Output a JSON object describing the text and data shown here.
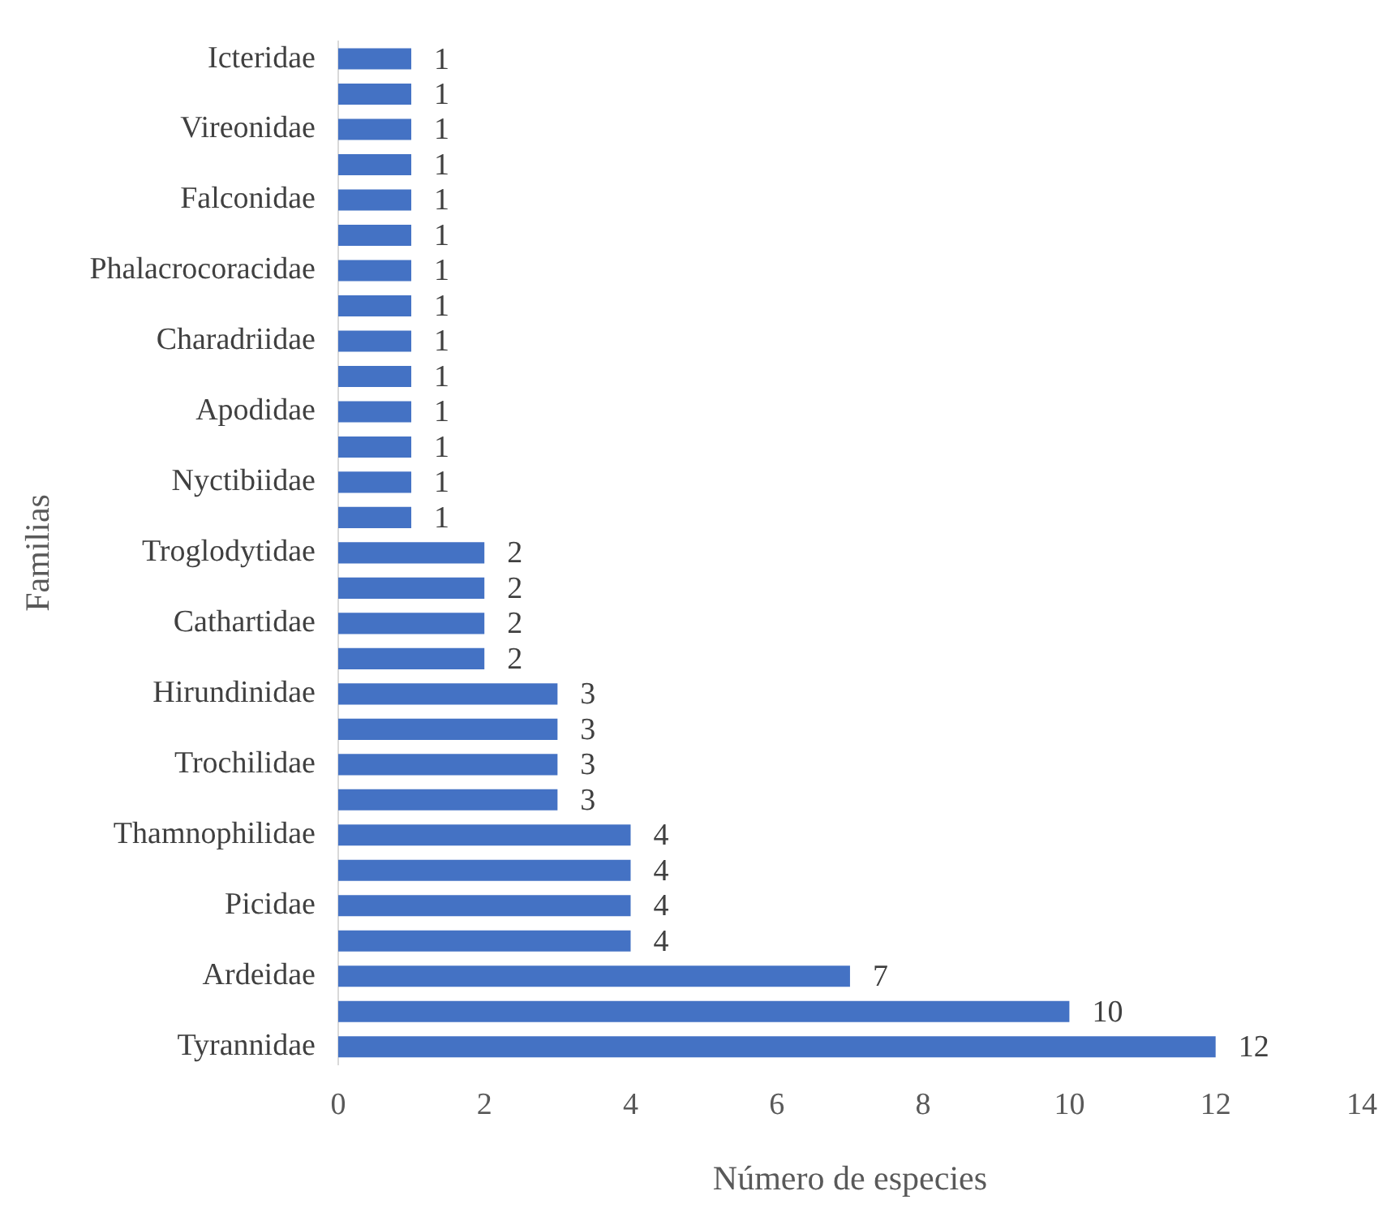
{
  "chart_data": {
    "type": "bar",
    "orientation": "horizontal",
    "xlabel": "Número de especies",
    "ylabel": "Familias",
    "categories": [
      "Icteridae",
      null,
      "Vireonidae",
      null,
      "Falconidae",
      null,
      "Phalacrocoracidae",
      null,
      "Charadriidae",
      null,
      "Apodidae",
      null,
      "Nyctibiidae",
      null,
      "Troglodytidae",
      null,
      "Cathartidae",
      null,
      "Hirundinidae",
      null,
      "Trochilidae",
      null,
      "Thamnophilidae",
      null,
      "Picidae",
      null,
      "Ardeidae",
      null,
      "Tyrannidae"
    ],
    "values": [
      1,
      1,
      1,
      1,
      1,
      1,
      1,
      1,
      1,
      1,
      1,
      1,
      1,
      1,
      2,
      2,
      2,
      2,
      3,
      3,
      3,
      3,
      4,
      4,
      4,
      4,
      7,
      10,
      12
    ],
    "color": "#4472c4",
    "xlim": [
      0,
      14
    ],
    "xticks": [
      0,
      2,
      4,
      6,
      8,
      10,
      12,
      14
    ],
    "grid": false,
    "legend": false,
    "data_labels": true
  }
}
